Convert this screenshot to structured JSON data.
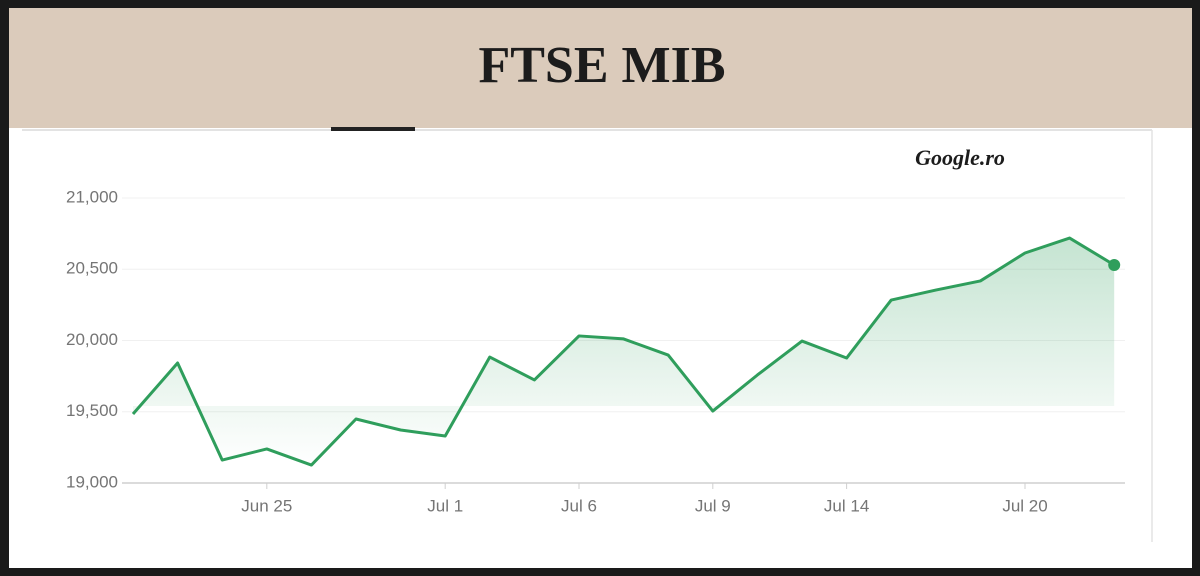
{
  "chart_data": {
    "type": "line",
    "title": "FTSE MIB",
    "source": "Google.ro",
    "categories": [
      null,
      null,
      null,
      "Jun 25",
      null,
      null,
      null,
      "Jul 1",
      null,
      null,
      "Jul 6",
      null,
      null,
      "Jul 9",
      null,
      null,
      "Jul 14",
      null,
      null,
      null,
      "Jul 20",
      null,
      null
    ],
    "series": [
      {
        "name": "FTSE MIB",
        "color": "#2f9e5c",
        "values": [
          19484,
          19842,
          19161,
          19239,
          19126,
          19449,
          19372,
          19330,
          19884,
          19723,
          20032,
          20011,
          19898,
          19505,
          19758,
          19996,
          19877,
          20284,
          20354,
          20418,
          20614,
          20719,
          20530
        ]
      }
    ],
    "ylim": [
      19000,
      21000
    ],
    "yticks": [
      {
        "value": 19000,
        "label": "19,000"
      },
      {
        "value": 19500,
        "label": "19,500"
      },
      {
        "value": 20000,
        "label": "20,000"
      },
      {
        "value": 20500,
        "label": "20,500"
      },
      {
        "value": 21000,
        "label": "21,000"
      }
    ],
    "grid": true
  }
}
